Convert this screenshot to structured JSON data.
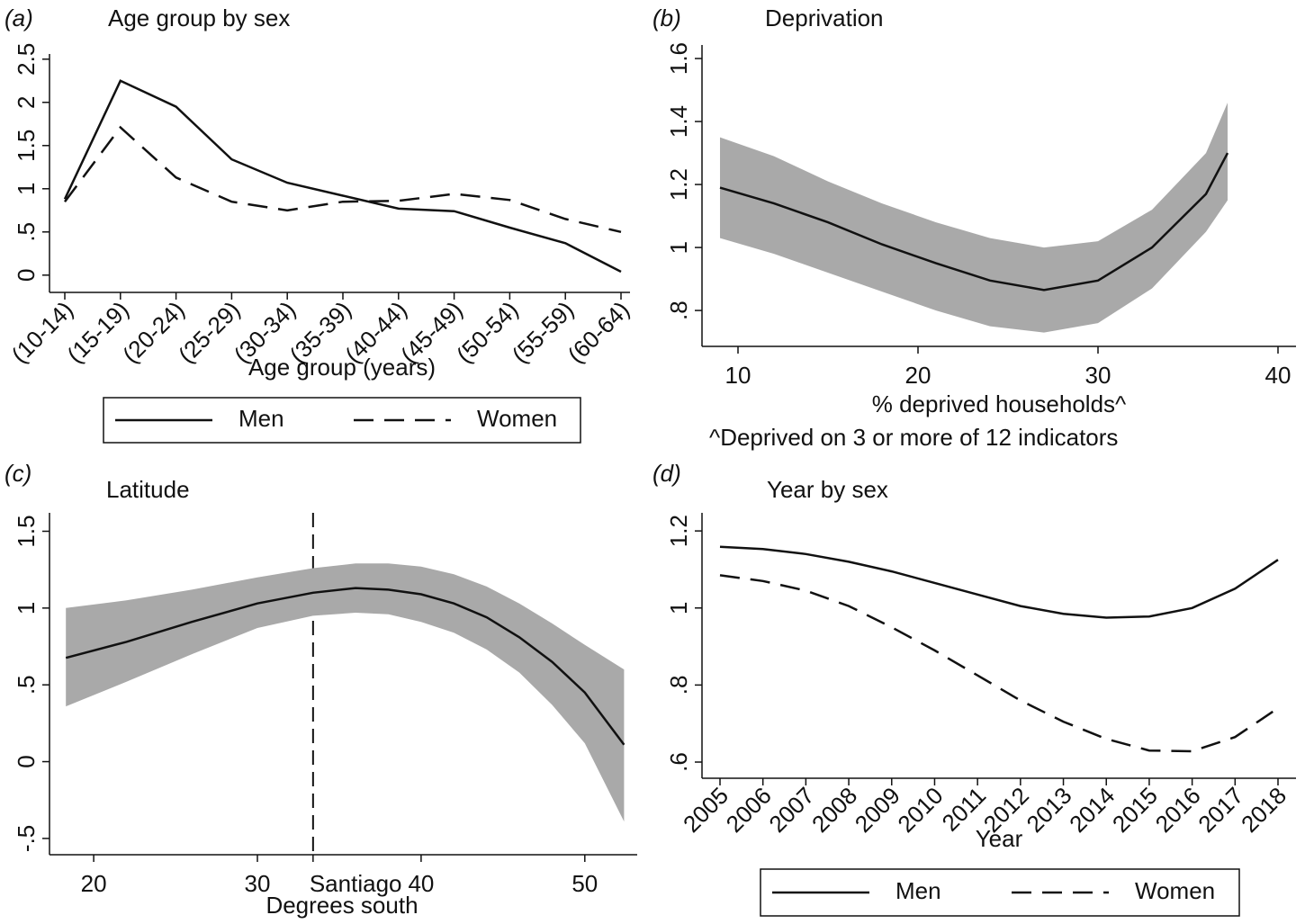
{
  "chart_data": [
    {
      "type": "line",
      "panel_label": "(a)",
      "title": "Age group by sex",
      "x_label": "Age group (years)",
      "categories": [
        "(10-14)",
        "(15-19)",
        "(20-24)",
        "(25-29)",
        "(30-34)",
        "(35-39)",
        "(40-44)",
        "(45-49)",
        "(50-54)",
        "(55-59)",
        "(60-64)"
      ],
      "series": [
        {
          "name": "Men",
          "color": "#111111",
          "line_style": "solid",
          "values": [
            0.88,
            2.25,
            1.95,
            1.34,
            1.07,
            0.92,
            0.77,
            0.74,
            0.55,
            0.37,
            0.04
          ]
        },
        {
          "name": "Women",
          "color": "#111111",
          "line_style": "dashed",
          "values": [
            0.85,
            1.71,
            1.13,
            0.85,
            0.75,
            0.85,
            0.86,
            0.94,
            0.87,
            0.65,
            0.5
          ]
        }
      ],
      "ylim": [
        -0.2,
        2.56
      ],
      "yticks": [
        0,
        {
          "value": 0.5,
          "label": ".5"
        },
        1,
        1.5,
        2,
        2.5
      ],
      "grid": false,
      "legend": "bottom"
    },
    {
      "type": "band",
      "panel_label": "(b)",
      "title": "Deprivation",
      "x_label": "% deprived households^",
      "note": "^Deprived on 3 or more of 12 indicators",
      "x": [
        9,
        12,
        15,
        18,
        21,
        24,
        27,
        30,
        33,
        36,
        37.2
      ],
      "values": [
        1.19,
        1.14,
        1.08,
        1.01,
        0.95,
        0.895,
        0.865,
        0.895,
        1.0,
        1.17,
        1.3
      ],
      "upper": [
        1.35,
        1.29,
        1.21,
        1.14,
        1.08,
        1.03,
        1.0,
        1.02,
        1.12,
        1.3,
        1.46
      ],
      "lower": [
        1.03,
        0.98,
        0.92,
        0.86,
        0.8,
        0.75,
        0.73,
        0.76,
        0.87,
        1.05,
        1.15
      ],
      "color": "#111111",
      "band_color": "#a9a9a9",
      "xlim": [
        8,
        41
      ],
      "xticks": [
        10,
        20,
        30,
        40
      ],
      "ylim": [
        0.686,
        1.643
      ],
      "yticks": [
        {
          "value": 0.8,
          "label": ".8"
        },
        1,
        1.2,
        1.4,
        1.6
      ],
      "grid": false
    },
    {
      "type": "band",
      "panel_label": "(c)",
      "title": "Latitude",
      "x_label": "Degrees south",
      "x": [
        18.3,
        22,
        26,
        30,
        33.4,
        36,
        38,
        40,
        42,
        44,
        46,
        48,
        50,
        52.4
      ],
      "values": [
        0.676,
        0.78,
        0.91,
        1.03,
        1.1,
        1.13,
        1.12,
        1.09,
        1.03,
        0.94,
        0.81,
        0.65,
        0.45,
        0.11
      ],
      "upper": [
        1.0,
        1.05,
        1.12,
        1.2,
        1.26,
        1.29,
        1.29,
        1.27,
        1.22,
        1.14,
        1.03,
        0.9,
        0.76,
        0.6
      ],
      "lower": [
        0.36,
        0.52,
        0.7,
        0.87,
        0.95,
        0.97,
        0.96,
        0.91,
        0.84,
        0.73,
        0.58,
        0.37,
        0.12,
        -0.39
      ],
      "color": "#111111",
      "band_color": "#a9a9a9",
      "xlim": [
        17.3,
        53.2
      ],
      "xticks": [
        20,
        30,
        {
          "value": 33.4,
          "label": "Santiago"
        },
        40,
        50
      ],
      "ylim": [
        -0.606,
        1.62
      ],
      "yticks": [
        {
          "value": -0.5,
          "label": "-.5"
        },
        0,
        {
          "value": 0.5,
          "label": ".5"
        },
        1,
        1.5
      ],
      "grid": false
    },
    {
      "type": "line",
      "panel_label": "(d)",
      "title": "Year by sex",
      "x_label": "Year",
      "categories": [
        "2005",
        "2006",
        "2007",
        "2008",
        "2009",
        "2010",
        "2011",
        "2012",
        "2013",
        "2014",
        "2015",
        "2016",
        "2017",
        "2018"
      ],
      "series": [
        {
          "name": "Men",
          "color": "#111111",
          "line_style": "solid",
          "values": [
            1.159,
            1.153,
            1.14,
            1.12,
            1.095,
            1.065,
            1.035,
            1.005,
            0.985,
            0.975,
            0.978,
            1.0,
            1.05,
            1.125
          ]
        },
        {
          "name": "Women",
          "color": "#111111",
          "line_style": "dashed",
          "values": [
            1.085,
            1.07,
            1.045,
            1.005,
            0.95,
            0.89,
            0.825,
            0.76,
            0.705,
            0.66,
            0.63,
            0.628,
            0.665,
            0.74
          ]
        }
      ],
      "ylim": [
        0.558,
        1.247
      ],
      "yticks": [
        {
          "value": 0.6,
          "label": ".6"
        },
        {
          "value": 0.8,
          "label": ".8"
        },
        1,
        1.2
      ],
      "grid": false,
      "legend": "bottom"
    }
  ]
}
